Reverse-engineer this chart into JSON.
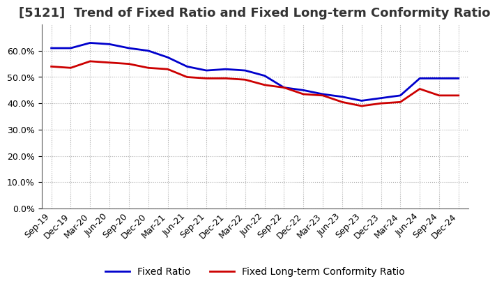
{
  "title": "[5121]  Trend of Fixed Ratio and Fixed Long-term Conformity Ratio",
  "x_labels": [
    "Sep-19",
    "Dec-19",
    "Mar-20",
    "Jun-20",
    "Sep-20",
    "Dec-20",
    "Mar-21",
    "Jun-21",
    "Sep-21",
    "Dec-21",
    "Mar-22",
    "Jun-22",
    "Sep-22",
    "Dec-22",
    "Mar-23",
    "Jun-23",
    "Sep-23",
    "Dec-23",
    "Mar-24",
    "Jun-24",
    "Sep-24",
    "Dec-24"
  ],
  "fixed_ratio": [
    61.0,
    61.0,
    63.0,
    62.5,
    61.0,
    60.0,
    57.5,
    54.0,
    52.5,
    53.0,
    52.5,
    50.5,
    46.0,
    45.0,
    43.5,
    42.5,
    41.0,
    42.0,
    43.0,
    49.5,
    49.5,
    49.5
  ],
  "fixed_lt_ratio": [
    54.0,
    53.5,
    56.0,
    55.5,
    55.0,
    53.5,
    53.0,
    50.0,
    49.5,
    49.5,
    49.0,
    47.0,
    46.0,
    43.5,
    43.0,
    40.5,
    39.0,
    40.0,
    40.5,
    45.5,
    43.0,
    43.0
  ],
  "fixed_ratio_color": "#0000CC",
  "fixed_lt_ratio_color": "#CC0000",
  "ylim": [
    0,
    70
  ],
  "yticks": [
    0,
    10,
    20,
    30,
    40,
    50,
    60
  ],
  "background_color": "#ffffff",
  "grid_color": "#aaaaaa",
  "legend_fixed": "Fixed Ratio",
  "legend_lt": "Fixed Long-term Conformity Ratio",
  "title_fontsize": 13,
  "axis_fontsize": 9,
  "legend_fontsize": 10
}
